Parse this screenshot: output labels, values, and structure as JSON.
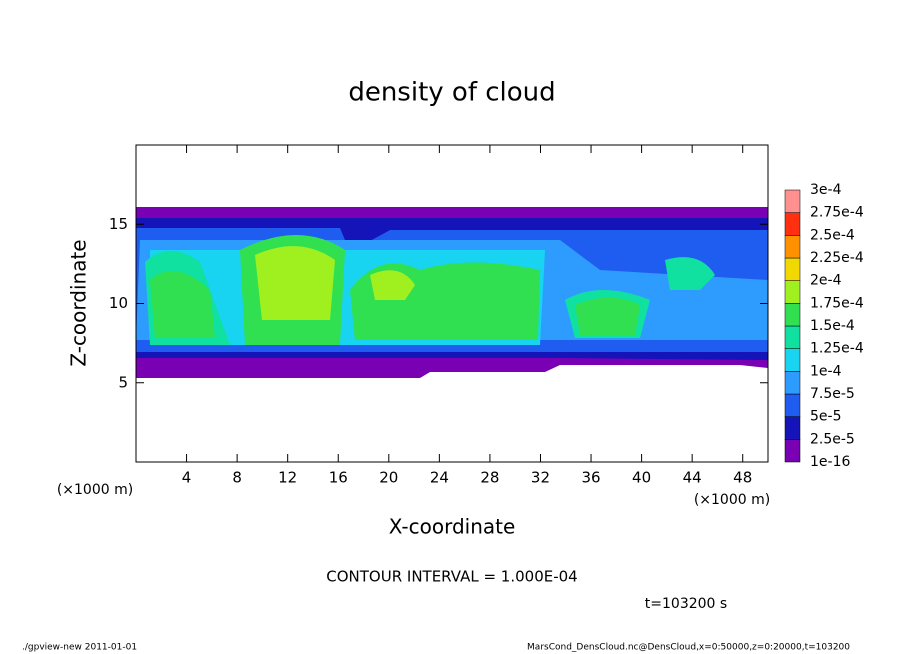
{
  "chart_data": {
    "type": "contour",
    "title": "density of cloud",
    "x_label": "X-coordinate",
    "y_label": "Z-coordinate",
    "x_unit": "(×1000 m)",
    "y_unit": "(×1000 m)",
    "xlim": [
      0,
      50
    ],
    "xticks": [
      4,
      8,
      12,
      16,
      20,
      24,
      28,
      32,
      36,
      40,
      44,
      48
    ],
    "ylim": [
      0,
      20
    ],
    "yticks": [
      5,
      10,
      15
    ],
    "cticks": [
      {
        "value": 1e-16,
        "label": "1e-16"
      },
      {
        "value": 2.5e-05,
        "label": "2.5e-5"
      },
      {
        "value": 5e-05,
        "label": "5e-5"
      },
      {
        "value": 7.5e-05,
        "label": "7.5e-5"
      },
      {
        "value": 0.0001,
        "label": "1e-4"
      },
      {
        "value": 0.000125,
        "label": "1.25e-4"
      },
      {
        "value": 0.00015,
        "label": "1.5e-4"
      },
      {
        "value": 0.000175,
        "label": "1.75e-4"
      },
      {
        "value": 0.0002,
        "label": "2e-4"
      },
      {
        "value": 0.000225,
        "label": "2.25e-4"
      },
      {
        "value": 0.00025,
        "label": "2.5e-4"
      },
      {
        "value": 0.000275,
        "label": "2.75e-4"
      },
      {
        "value": 0.0003,
        "label": "3e-4"
      }
    ],
    "colors": [
      "#7a00b4",
      "#1414b8",
      "#1f5cf0",
      "#2e9cff",
      "#18d4f0",
      "#10e0a0",
      "#30e050",
      "#a0f020",
      "#f0d800",
      "#ff9000",
      "#ff3010",
      "#ff9090"
    ],
    "annotation": "CONTOUR INTERVAL = 1.000E-04",
    "time": "t=103200 s",
    "footer_left": "./gpview-new  2011-01-01",
    "footer_right": "MarsCond_DensCloud.nc@DensCloud,x=0:50000,z=0:20000,t=103200"
  }
}
